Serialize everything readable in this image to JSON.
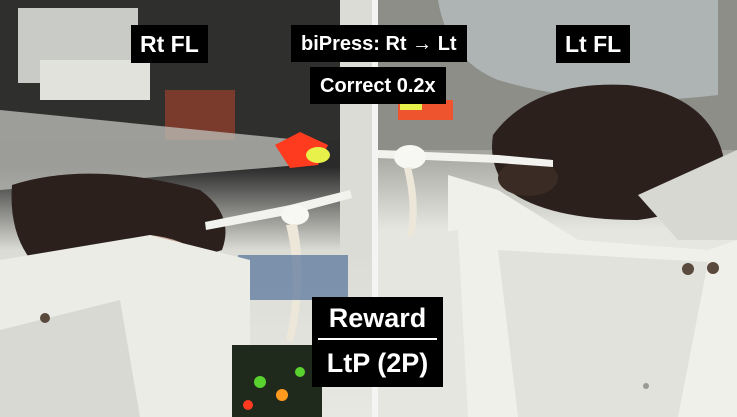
{
  "overlay": {
    "rt_fl": "Rt FL",
    "bipress": "biPress: Rt → Lt",
    "correct": "Correct 0.2x",
    "lt_fl": "Lt FL",
    "reward": "Reward",
    "ltp": "LtP (2P)"
  },
  "colors": {
    "label_bg": "#000000",
    "label_text": "#ffffff",
    "cue_led": "#ff3b1f",
    "mouse_fur": "#2b201b",
    "apparatus": "#eeeee8"
  }
}
